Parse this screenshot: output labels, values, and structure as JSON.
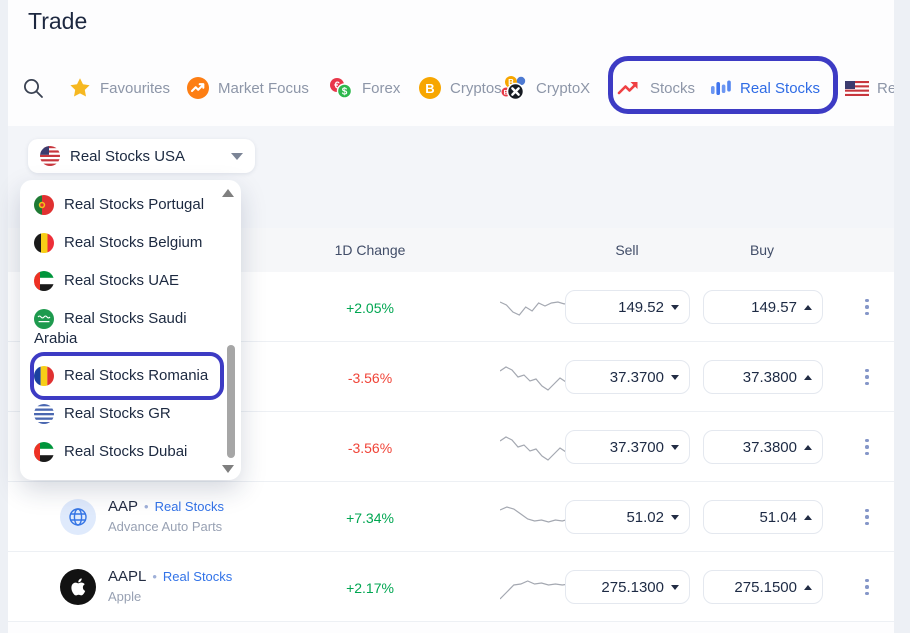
{
  "page": {
    "title": "Trade"
  },
  "colors": {
    "accent_blue": "#2f6ce5",
    "annotation": "#3d3bc4",
    "positive": "#00a651",
    "negative": "#f04438",
    "link_blue": "#3273e8"
  },
  "tabs": {
    "items": [
      {
        "label": "Favourites",
        "icon": "star"
      },
      {
        "label": "Market Focus",
        "icon": "market-focus"
      },
      {
        "label": "Forex",
        "icon": "forex-coins"
      },
      {
        "label": "Cryptos",
        "icon": "bitcoin-coin"
      },
      {
        "label": "CryptoX",
        "icon": "cryptox-coins"
      },
      {
        "label": "Stocks",
        "icon": "trend-arrow",
        "active": false
      },
      {
        "label": "Real Stocks",
        "icon": "bar-chart",
        "active": true
      },
      {
        "label": "Re",
        "icon": "usa-flag-rect",
        "partial": true
      }
    ]
  },
  "region_selector": {
    "label": "Real Stocks USA",
    "flag": "usa"
  },
  "dropdown": {
    "items": [
      {
        "label": "Real Stocks Portugal",
        "flag": "portugal"
      },
      {
        "label": "Real Stocks Belgium",
        "flag": "belgium"
      },
      {
        "label": "Real Stocks UAE",
        "flag": "uae"
      },
      {
        "label": "Real Stocks Saudi Arabia",
        "flag": "saudi"
      },
      {
        "label": "Real Stocks Romania",
        "flag": "romania",
        "annotated": true
      },
      {
        "label": "Real Stocks GR",
        "flag": "greece"
      },
      {
        "label": "Real Stocks Dubai",
        "flag": "dubai"
      }
    ]
  },
  "table": {
    "headers": {
      "change": "1D Change",
      "sell": "Sell",
      "buy": "Buy"
    },
    "rows": [
      {
        "symbol": "",
        "badge": "",
        "company": "",
        "change": "+2.05%",
        "direction": "up",
        "sell": "149.52",
        "buy": "149.57",
        "icon": null,
        "spark": "r1"
      },
      {
        "symbol": "",
        "badge": "",
        "company": "",
        "change": "-3.56%",
        "direction": "down",
        "sell": "37.3700",
        "buy": "37.3800",
        "icon": null,
        "spark": "r2"
      },
      {
        "symbol": "",
        "badge": "",
        "company": "",
        "change": "-3.56%",
        "direction": "down",
        "sell": "37.3700",
        "buy": "37.3800",
        "icon": null,
        "spark": "r2"
      },
      {
        "symbol": "AAP",
        "badge": "Real Stocks",
        "company": "Advance Auto Parts",
        "change": "+7.34%",
        "direction": "up",
        "sell": "51.02",
        "buy": "51.04",
        "icon": "globe",
        "spark": "r4"
      },
      {
        "symbol": "AAPL",
        "badge": "Real Stocks",
        "company": "Apple",
        "change": "+2.17%",
        "direction": "up",
        "sell": "275.1300",
        "buy": "275.1500",
        "icon": "apple",
        "spark": "r5"
      }
    ]
  },
  "sparklines": {
    "r1": [
      10,
      13,
      20,
      23,
      15,
      19,
      11,
      14,
      11,
      10,
      12,
      9,
      12,
      6,
      7
    ],
    "r2": [
      9,
      5,
      8,
      15,
      13,
      19,
      17,
      24,
      28,
      22,
      16,
      20,
      12,
      6,
      9,
      13
    ],
    "r4": [
      8,
      5,
      7,
      12,
      17,
      19,
      18,
      20,
      18,
      19,
      17,
      19,
      18,
      15
    ],
    "r5": [
      27,
      20,
      13,
      12,
      9,
      12,
      11,
      13,
      12,
      13,
      12,
      11,
      8,
      5
    ]
  }
}
